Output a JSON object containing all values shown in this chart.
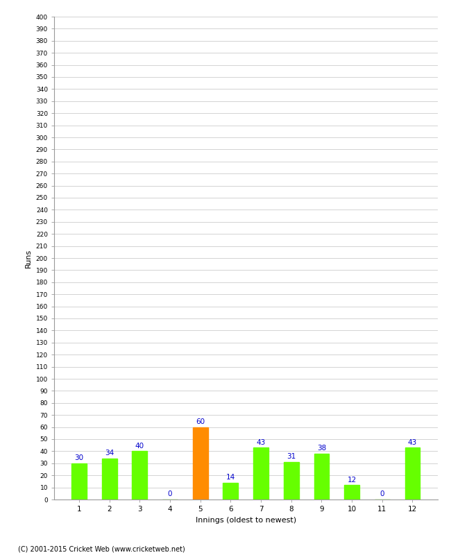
{
  "innings": [
    1,
    2,
    3,
    4,
    5,
    6,
    7,
    8,
    9,
    10,
    11,
    12
  ],
  "runs": [
    30,
    34,
    40,
    0,
    60,
    14,
    43,
    31,
    38,
    12,
    0,
    43
  ],
  "bar_colors": [
    "#66ff00",
    "#66ff00",
    "#66ff00",
    "#66ff00",
    "#ff8c00",
    "#66ff00",
    "#66ff00",
    "#66ff00",
    "#66ff00",
    "#66ff00",
    "#66ff00",
    "#66ff00"
  ],
  "xlabel": "Innings (oldest to newest)",
  "ylabel": "Runs",
  "ylim": [
    0,
    400
  ],
  "label_color": "#0000cc",
  "background_color": "#ffffff",
  "grid_color": "#cccccc",
  "copyright": "(C) 2001-2015 Cricket Web (www.cricketweb.net)",
  "bar_width": 0.5
}
